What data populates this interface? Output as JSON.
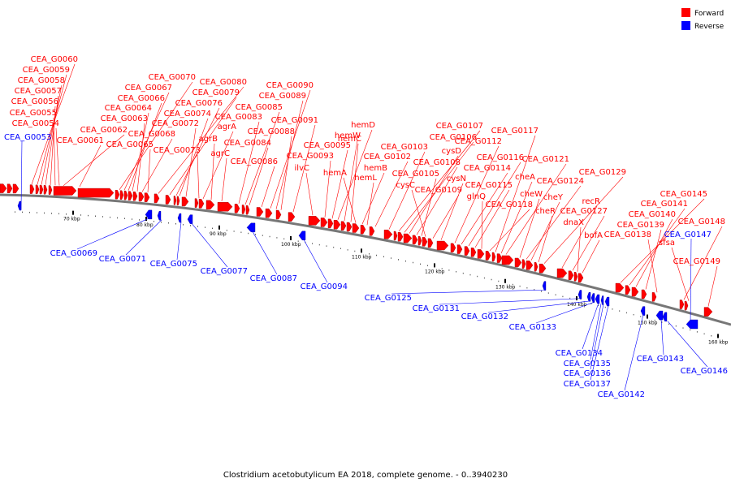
{
  "title": "Clostridium acetobutylicum EA 2018, complete genome. - 0..3940230",
  "legend": [
    {
      "label": "Forward",
      "color": "#ff0000"
    },
    {
      "label": "Reverse",
      "color": "#0000ff"
    }
  ],
  "axis": {
    "tick_labels": [
      "70 kbp",
      "80 kbp",
      "90 kbp",
      "100 kbp",
      "110 kbp",
      "120 kbp",
      "130 kbp",
      "140 kbp",
      "150 kbp",
      "160 kbp"
    ]
  },
  "forward_genes": [
    "CEA_G0060",
    "CEA_G0059",
    "CEA_G0058",
    "CEA_G0057",
    "CEA_G0056",
    "CEA_G0055",
    "CEA_G0054",
    "CEA_G0062",
    "CEA_G0061",
    "CEA_G0070",
    "CEA_G0067",
    "CEA_G0066",
    "CEA_G0064",
    "CEA_G0063",
    "CEA_G0068",
    "CEA_G0065",
    "CEA_G0080",
    "CEA_G0079",
    "CEA_G0076",
    "CEA_G0074",
    "CEA_G0072",
    "CEA_G0073",
    "agrA",
    "agrB",
    "agrC",
    "CEA_G0083",
    "CEA_G0085",
    "CEA_G0084",
    "CEA_G0086",
    "CEA_G0090",
    "CEA_G0089",
    "CEA_G0088",
    "CEA_G0091",
    "ilvC",
    "CEA_G0093",
    "CEA_G0095",
    "hemD",
    "hemW",
    "hemC",
    "hemA",
    "hemB",
    "hemL",
    "CEA_G0102",
    "CEA_G0103",
    "CEA_G0107",
    "CEA_G0106",
    "cysD",
    "CEA_G0108",
    "CEA_G0105",
    "cysC",
    "CEA_G0109",
    "cysN",
    "CEA_G0112",
    "CEA_G0114",
    "CEA_G0116",
    "CEA_G0115",
    "glnQ",
    "CEA_G0118",
    "CEA_G0117",
    "cheA",
    "CEA_G0121",
    "cheW",
    "CEA_G0124",
    "cheY",
    "cheR",
    "CEA_G0129",
    "recR",
    "CEA_G0127",
    "dnaX",
    "bofA",
    "CEA_G0145",
    "CEA_G0141",
    "CEA_G0140",
    "CEA_G0139",
    "CEA_G0138",
    "CEA_G0148",
    "sfsa",
    "CEA_G0149"
  ],
  "reverse_genes": [
    "CEA_G0053",
    "CEA_G0069",
    "CEA_G0071",
    "CEA_G0075",
    "CEA_G0077",
    "CEA_G0087",
    "CEA_G0094",
    "CEA_G0125",
    "CEA_G0131",
    "CEA_G0132",
    "CEA_G0133",
    "CEA_G0134",
    "CEA_G0135",
    "CEA_G0136",
    "CEA_G0137",
    "CEA_G0142",
    "CEA_G0143",
    "CEA_G0146",
    "CEA_G0147"
  ]
}
